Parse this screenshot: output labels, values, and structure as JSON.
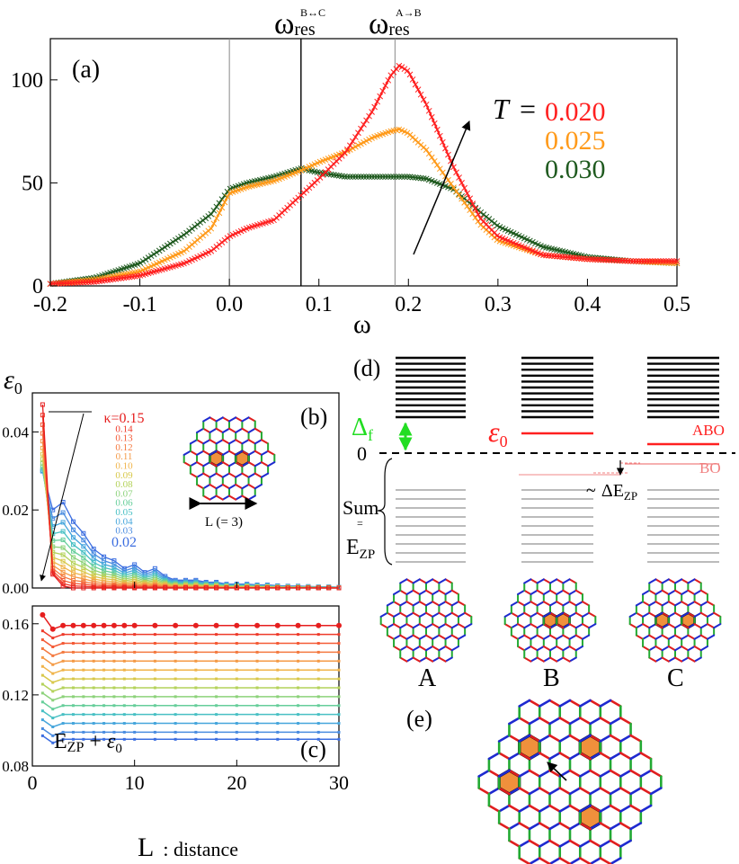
{
  "panel_a": {
    "label": "(a)",
    "xlabel": "ω",
    "xticks": [
      "-0.2",
      "-0.1",
      "0.0",
      "0.1",
      "0.2",
      "0.3",
      "0.4",
      "0.5"
    ],
    "yticks": [
      "0",
      "50",
      "100"
    ],
    "omega_bc": {
      "main": "ω",
      "sub": "res",
      "sup": "B↔C"
    },
    "omega_ab": {
      "main": "ω",
      "sub": "res",
      "sup": "A→B"
    },
    "t_label": "T",
    "t_equals": "=",
    "temps": [
      "0.020",
      "0.025",
      "0.030"
    ],
    "colors": {
      "red": "#ff2020",
      "orange": "#ff9a1a",
      "green": "#1f5a1f"
    }
  },
  "chart_data": [
    {
      "type": "line",
      "panel": "a",
      "title": "",
      "xlabel": "ω",
      "ylabel": "",
      "xlim": [
        -0.2,
        0.5
      ],
      "ylim": [
        0,
        120
      ],
      "vlines": [
        0.0,
        0.08,
        0.185
      ],
      "x": [
        -0.2,
        -0.15,
        -0.1,
        -0.05,
        -0.02,
        0.0,
        0.02,
        0.05,
        0.08,
        0.1,
        0.13,
        0.16,
        0.18,
        0.19,
        0.2,
        0.22,
        0.25,
        0.28,
        0.3,
        0.35,
        0.4,
        0.45,
        0.5
      ],
      "series": [
        {
          "name": "T = 0.020",
          "color": "#ff2020",
          "values": [
            1,
            2,
            5,
            11,
            17,
            24,
            28,
            32,
            44,
            52,
            65,
            85,
            102,
            107,
            104,
            88,
            58,
            33,
            24,
            15,
            13,
            12,
            12
          ]
        },
        {
          "name": "T = 0.025",
          "color": "#ff9a1a",
          "values": [
            1,
            3,
            7,
            17,
            28,
            45,
            48,
            51,
            56,
            60,
            65,
            72,
            75,
            76,
            74,
            66,
            48,
            30,
            22,
            15,
            13,
            12,
            11
          ]
        },
        {
          "name": "T = 0.030",
          "color": "#1f5a1f",
          "values": [
            1,
            4,
            11,
            25,
            35,
            47,
            50,
            53,
            57,
            55,
            53,
            53,
            53,
            53,
            53,
            52,
            47,
            36,
            29,
            19,
            14,
            12,
            11
          ]
        }
      ]
    },
    {
      "type": "line",
      "panel": "b",
      "ylabel": "ε0",
      "xlim": [
        0,
        30
      ],
      "ylim": [
        0,
        0.05
      ],
      "kappa": [
        0.15,
        0.14,
        0.13,
        0.12,
        0.11,
        0.1,
        0.09,
        0.08,
        0.07,
        0.06,
        0.05,
        0.04,
        0.03,
        0.02
      ],
      "x": [
        1,
        2,
        3,
        4,
        5,
        6,
        7,
        8,
        9,
        10,
        11,
        12,
        13,
        14,
        15,
        16,
        17,
        18,
        19,
        20,
        21,
        22,
        23,
        24,
        25,
        26,
        27,
        28,
        29,
        30
      ],
      "series_example": {
        "name": "κ=0.15",
        "values": [
          0.047,
          0.0035,
          0.0005,
          0,
          0,
          0,
          0,
          0,
          0,
          0,
          0,
          0,
          0,
          0,
          0,
          0,
          0,
          0,
          0,
          0,
          0,
          0,
          0,
          0,
          0,
          0,
          0,
          0,
          0,
          0
        ]
      },
      "series_example_low": {
        "name": "κ=0.02",
        "values": [
          0.03,
          0.02,
          0.022,
          0.017,
          0.014,
          0.01,
          0.008,
          0.007,
          0.005,
          0.006,
          0.004,
          0.005,
          0.003,
          0.002,
          0.002,
          0.002,
          0.0015,
          0.0015,
          0.001,
          0.001,
          0.001,
          0.0008,
          0.0008,
          0.0006,
          0.0005,
          0.0005,
          0.0004,
          0.0003,
          0.0003,
          0.0002
        ]
      }
    },
    {
      "type": "line",
      "panel": "c",
      "ylabel": "E_ZP + ε0",
      "xlabel": "L : distance",
      "xlim": [
        0,
        30
      ],
      "ylim": [
        0.08,
        0.17
      ],
      "levels": [
        0.159,
        0.154,
        0.149,
        0.144,
        0.139,
        0.134,
        0.129,
        0.124,
        0.119,
        0.114,
        0.109,
        0.104,
        0.099,
        0.095
      ]
    }
  ],
  "panel_b": {
    "label": "(b)",
    "ylabel": "ε",
    "ylabel_sub": "0",
    "yticks": [
      "0.00",
      "0.02",
      "0.04"
    ],
    "kappa_labels": [
      "κ=0.15",
      "0.14",
      "0.13",
      "0.12",
      "0.11",
      "0.10",
      "0.09",
      "0.08",
      "0.07",
      "0.06",
      "0.05",
      "0.04",
      "0.03",
      "0.02"
    ],
    "kappa_colors": [
      "#e61e1e",
      "#ee3a2a",
      "#f45a36",
      "#f47a40",
      "#f49a46",
      "#f0b44a",
      "#d8c84a",
      "#b4d25a",
      "#8cd27a",
      "#66ce9a",
      "#48c0c4",
      "#46a6dc",
      "#4a8ce0",
      "#3c6ee0"
    ],
    "l_note": "L (= 3)"
  },
  "panel_c": {
    "label": "(c)",
    "yticks": [
      "0.08",
      "0.12",
      "0.16"
    ],
    "xticks": [
      "0",
      "10",
      "20",
      "30"
    ],
    "formula": "E",
    "formula_sub": "ZP",
    "formula_rest": "+",
    "formula_eps": "ε",
    "formula_eps_sub": "0",
    "xlabel_main": "L",
    "xlabel_rest": ": distance"
  },
  "panel_d": {
    "label": "(d)",
    "zero": "0",
    "delta": "Δ",
    "delta_sub": "f",
    "eps": "ε",
    "eps_sub": "0",
    "abo": "ABO",
    "bo": "BO",
    "tilde": "~",
    "dezp": "ΔE",
    "dezp_sub": "ZP",
    "sum": "Sum",
    "equiv": "=",
    "ezp": "E",
    "ezp_sub": "ZP",
    "configs": [
      "A",
      "B",
      "C"
    ]
  },
  "panel_e": {
    "label": "(e)"
  }
}
